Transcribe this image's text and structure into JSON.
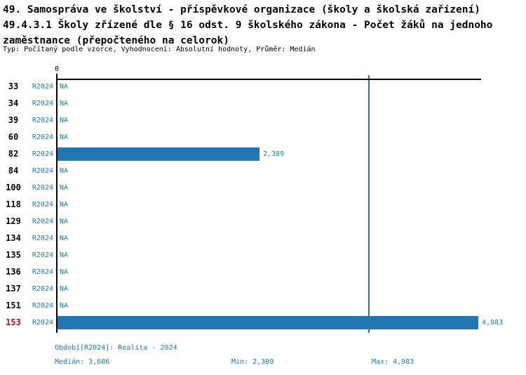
{
  "header": {
    "title_lines": [
      "49. Samospráva ve školství - příspěvkové organizace (školy a školská zařízení)",
      "49.4.3.1 Školy zřízené dle § 16 odst. 9 školského zákona - Počet žáků na jednoho",
      "zaměstnance (přepočteného na celorok)"
    ],
    "subtitle": "Typ: Počítaný podle vzorce, Vyhodnocení: Absolutní hodnoty, Průměr: Medián"
  },
  "chart_data": {
    "type": "bar",
    "orientation": "horizontal",
    "title": "Počet žáků na jednoho zaměstnance (přepočteného na celorok)",
    "axis_tick_label": "0",
    "xlim": [
      0,
      4983
    ],
    "median": 3686,
    "categories": [
      "33",
      "34",
      "39",
      "60",
      "82",
      "84",
      "100",
      "118",
      "129",
      "134",
      "135",
      "136",
      "137",
      "151",
      "153"
    ],
    "series": [
      {
        "name": "R2024",
        "values": [
          null,
          null,
          null,
          null,
          2389,
          null,
          null,
          null,
          null,
          null,
          null,
          null,
          null,
          null,
          4983
        ]
      }
    ],
    "rows": [
      {
        "id": "33",
        "period": "R2024",
        "value": null,
        "display": "NA",
        "highlight": false
      },
      {
        "id": "34",
        "period": "R2024",
        "value": null,
        "display": "NA",
        "highlight": false
      },
      {
        "id": "39",
        "period": "R2024",
        "value": null,
        "display": "NA",
        "highlight": false
      },
      {
        "id": "60",
        "period": "R2024",
        "value": null,
        "display": "NA",
        "highlight": false
      },
      {
        "id": "82",
        "period": "R2024",
        "value": 2389,
        "display": "2,389",
        "highlight": false
      },
      {
        "id": "84",
        "period": "R2024",
        "value": null,
        "display": "NA",
        "highlight": false
      },
      {
        "id": "100",
        "period": "R2024",
        "value": null,
        "display": "NA",
        "highlight": false
      },
      {
        "id": "118",
        "period": "R2024",
        "value": null,
        "display": "NA",
        "highlight": false
      },
      {
        "id": "129",
        "period": "R2024",
        "value": null,
        "display": "NA",
        "highlight": false
      },
      {
        "id": "134",
        "period": "R2024",
        "value": null,
        "display": "NA",
        "highlight": false
      },
      {
        "id": "135",
        "period": "R2024",
        "value": null,
        "display": "NA",
        "highlight": false
      },
      {
        "id": "136",
        "period": "R2024",
        "value": null,
        "display": "NA",
        "highlight": false
      },
      {
        "id": "137",
        "period": "R2024",
        "value": null,
        "display": "NA",
        "highlight": false
      },
      {
        "id": "151",
        "period": "R2024",
        "value": null,
        "display": "NA",
        "highlight": false
      },
      {
        "id": "153",
        "period": "R2024",
        "value": 4983,
        "display": "4,983",
        "highlight": true
      }
    ],
    "footer": {
      "period": "Období[R2024]: Realita - 2024",
      "median": "Medián: 3,686",
      "min": "Min: 2,389",
      "max": "Max: 4,983"
    },
    "colors": {
      "bar_blue": "#2077b4",
      "median_line_blue": "#2077b4",
      "text_blue": "#2077b4",
      "highlight_red": "#dd0000",
      "axis_black": "#000000",
      "title_black": "#000000"
    }
  }
}
